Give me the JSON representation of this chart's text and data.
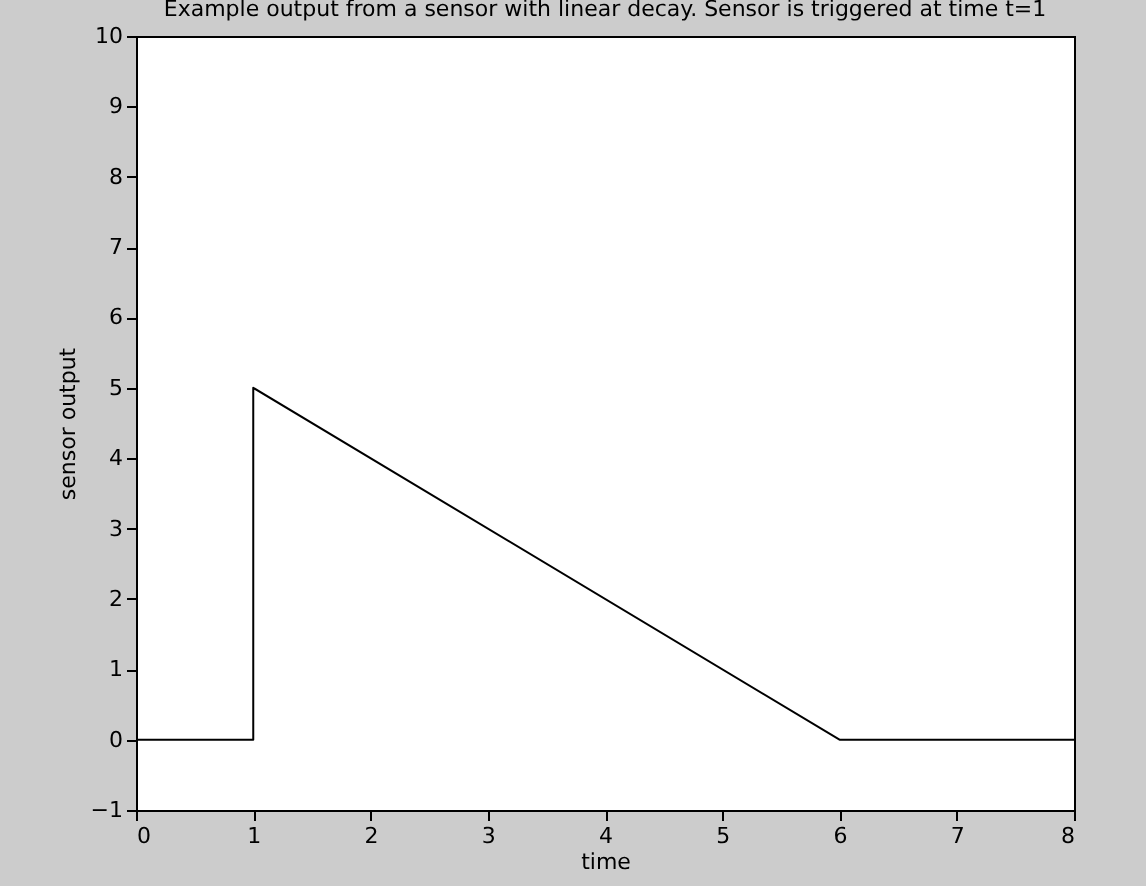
{
  "chart_data": {
    "type": "line",
    "title": "Example output from a sensor with linear decay. Sensor is triggered at time t=1",
    "xlabel": "time",
    "ylabel": "sensor output",
    "x": [
      0,
      1,
      1,
      6,
      8
    ],
    "series": [
      {
        "color": "#000000",
        "values": [
          0,
          0,
          5,
          0,
          0
        ]
      }
    ],
    "xlim": [
      0,
      8
    ],
    "xticks": [
      0,
      1,
      2,
      3,
      4,
      5,
      6,
      7,
      8
    ],
    "ylim": [
      -1,
      10
    ],
    "yticks": [
      -1,
      0,
      1,
      2,
      3,
      4,
      5,
      6,
      7,
      8,
      9,
      10
    ],
    "grid": false,
    "marker": "none",
    "line_style": "solid"
  }
}
